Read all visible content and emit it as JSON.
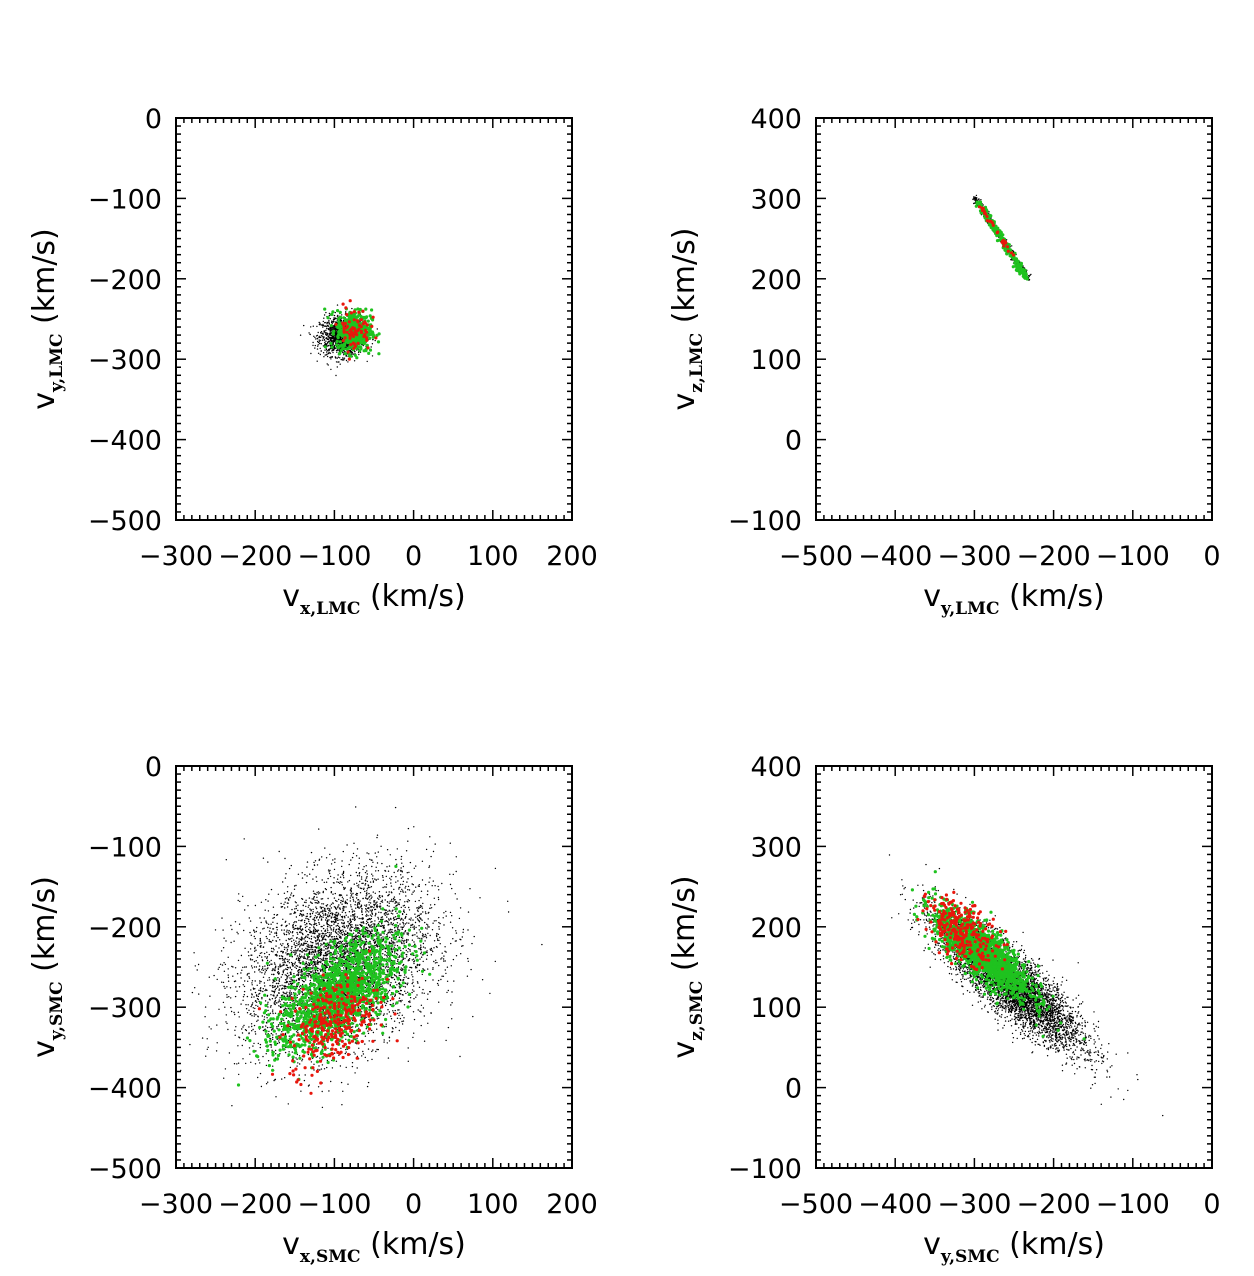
{
  "chart_data": [
    {
      "type": "scatter",
      "xlabel": {
        "main": "v",
        "sub": "x,LMC",
        "unit": " (km/s)"
      },
      "ylabel": {
        "main": "v",
        "sub": "y,LMC",
        "unit": " (km/s)"
      },
      "xlim": [
        -300,
        200
      ],
      "ylim": [
        -500,
        0
      ],
      "xticks": [
        -300,
        -200,
        -100,
        0,
        100,
        200
      ],
      "xtick_labels": [
        "−300",
        "−200",
        "−100",
        "0",
        "100",
        "200"
      ],
      "yticks": [
        -500,
        -400,
        -300,
        -200,
        -100,
        0
      ],
      "ytick_labels": [
        "−500",
        "−400",
        "−300",
        "−200",
        "−100",
        "0"
      ],
      "series": [
        {
          "color": "#000000",
          "shape": "blob",
          "center": [
            -90,
            -272
          ],
          "spread": [
            14,
            12
          ],
          "rho": 0.0,
          "count": 1400
        },
        {
          "color": "#1fc21f",
          "shape": "blob",
          "center": [
            -75,
            -265
          ],
          "spread": [
            11,
            13
          ],
          "rho": 0.0,
          "count": 450
        },
        {
          "color": "#e8160c",
          "shape": "blob",
          "center": [
            -75,
            -262
          ],
          "spread": [
            10,
            14
          ],
          "rho": 0.0,
          "count": 70
        }
      ]
    },
    {
      "type": "scatter",
      "xlabel": {
        "main": "v",
        "sub": "y,LMC",
        "unit": " (km/s)"
      },
      "ylabel": {
        "main": "v",
        "sub": "z,LMC",
        "unit": " (km/s)"
      },
      "xlim": [
        -500,
        0
      ],
      "ylim": [
        -100,
        400
      ],
      "xticks": [
        -500,
        -400,
        -300,
        -200,
        -100,
        0
      ],
      "xtick_labels": [
        "−500",
        "−400",
        "−300",
        "−200",
        "−100",
        "0"
      ],
      "yticks": [
        -100,
        0,
        100,
        200,
        300,
        400
      ],
      "ytick_labels": [
        "−100",
        "0",
        "100",
        "200",
        "300",
        "400"
      ],
      "series": [
        {
          "color": "#000000",
          "shape": "line",
          "from": [
            -300,
            302
          ],
          "to": [
            -232,
            200
          ],
          "width": 3,
          "count": 500
        },
        {
          "color": "#1fc21f",
          "shape": "line",
          "from": [
            -295,
            295
          ],
          "to": [
            -234,
            200
          ],
          "width": 3,
          "count": 260
        },
        {
          "color": "#e8160c",
          "shape": "line",
          "from": [
            -292,
            290
          ],
          "to": [
            -250,
            225
          ],
          "width": 2,
          "count": 30
        }
      ]
    },
    {
      "type": "scatter",
      "xlabel": {
        "main": "v",
        "sub": "x,SMC",
        "unit": " (km/s)"
      },
      "ylabel": {
        "main": "v",
        "sub": "y,SMC",
        "unit": " (km/s)"
      },
      "xlim": [
        -300,
        200
      ],
      "ylim": [
        -500,
        0
      ],
      "xticks": [
        -300,
        -200,
        -100,
        0,
        100,
        200
      ],
      "xtick_labels": [
        "−300",
        "−200",
        "−100",
        "0",
        "100",
        "200"
      ],
      "yticks": [
        -500,
        -400,
        -300,
        -200,
        -100,
        0
      ],
      "ytick_labels": [
        "−500",
        "−400",
        "−300",
        "−200",
        "−100",
        "0"
      ],
      "series": [
        {
          "color": "#000000",
          "shape": "blob",
          "center": [
            -95,
            -245
          ],
          "spread": [
            60,
            55
          ],
          "rho": 0.3,
          "count": 5200
        },
        {
          "color": "#1fc21f",
          "shape": "blob",
          "center": [
            -95,
            -285
          ],
          "spread": [
            38,
            35
          ],
          "rho": 0.6,
          "count": 1500
        },
        {
          "color": "#e8160c",
          "shape": "blob",
          "center": [
            -100,
            -318
          ],
          "spread": [
            28,
            28
          ],
          "rho": 0.4,
          "count": 300
        }
      ]
    },
    {
      "type": "scatter",
      "xlabel": {
        "main": "v",
        "sub": "y,SMC",
        "unit": " (km/s)"
      },
      "ylabel": {
        "main": "v",
        "sub": "z,SMC",
        "unit": " (km/s)"
      },
      "xlim": [
        -500,
        0
      ],
      "ylim": [
        -100,
        400
      ],
      "xticks": [
        -500,
        -400,
        -300,
        -200,
        -100,
        0
      ],
      "xtick_labels": [
        "−500",
        "−400",
        "−300",
        "−200",
        "−100",
        "0"
      ],
      "yticks": [
        -100,
        0,
        100,
        200,
        300,
        400
      ],
      "ytick_labels": [
        "−100",
        "0",
        "100",
        "200",
        "300",
        "400"
      ],
      "series": [
        {
          "color": "#000000",
          "shape": "blob",
          "center": [
            -255,
            130
          ],
          "spread": [
            45,
            40
          ],
          "rho": -0.85,
          "count": 5200
        },
        {
          "color": "#1fc21f",
          "shape": "blob",
          "center": [
            -290,
            168
          ],
          "spread": [
            30,
            27
          ],
          "rho": -0.8,
          "count": 1500
        },
        {
          "color": "#e8160c",
          "shape": "blob",
          "center": [
            -315,
            195
          ],
          "spread": [
            22,
            20
          ],
          "rho": -0.5,
          "count": 260
        }
      ]
    }
  ]
}
